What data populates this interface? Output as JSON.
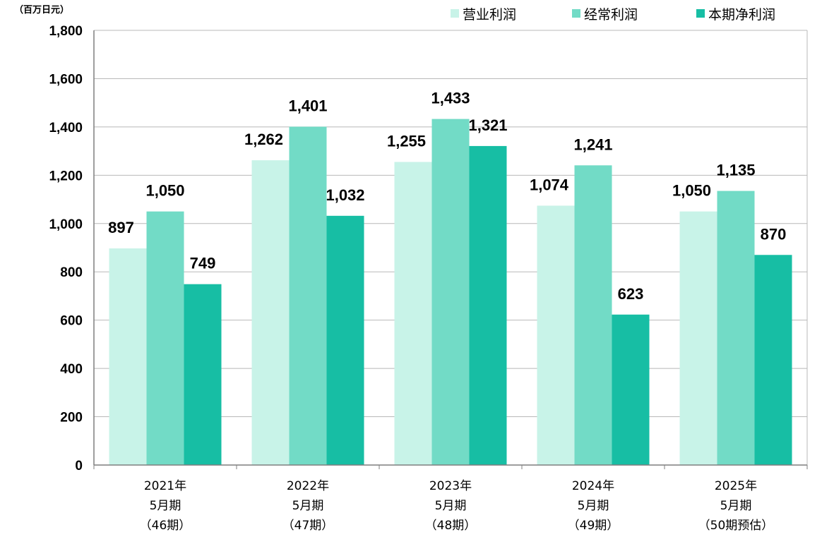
{
  "chart_data": {
    "type": "bar",
    "unit_label": "（百万日元）",
    "categories": [
      [
        "2021年",
        "5月期",
        "（46期）"
      ],
      [
        "2022年",
        "5月期",
        "（47期）"
      ],
      [
        "2023年",
        "5月期",
        "（48期）"
      ],
      [
        "2024年",
        "5月期",
        "（49期）"
      ],
      [
        "2025年",
        "5月期",
        "（50期预估）"
      ]
    ],
    "series": [
      {
        "name": "营业利润",
        "color": "#c8f3e8",
        "values": [
          897,
          1262,
          1255,
          1074,
          1050
        ]
      },
      {
        "name": "经常利润",
        "color": "#72dbc6",
        "values": [
          1050,
          1401,
          1433,
          1241,
          1135
        ]
      },
      {
        "name": "本期净利润",
        "color": "#17bea4",
        "values": [
          749,
          1032,
          1321,
          623,
          870
        ]
      }
    ],
    "ylim": [
      0,
      1800
    ],
    "yticks": [
      0,
      200,
      400,
      600,
      800,
      1000,
      1200,
      1400,
      1600,
      1800
    ],
    "grid": true,
    "legend_position": "top-right"
  }
}
